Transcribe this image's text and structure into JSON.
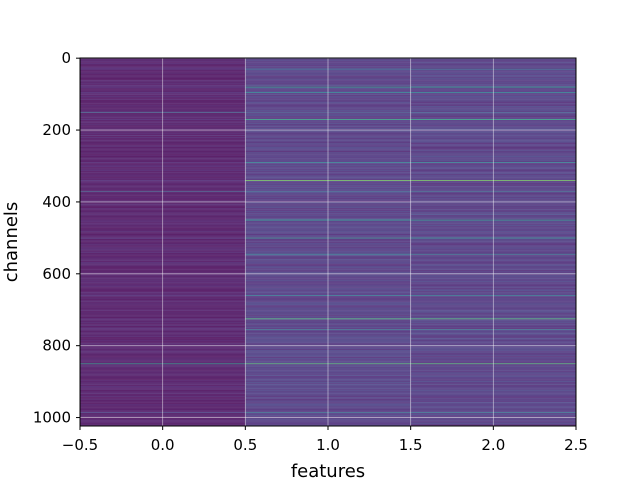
{
  "chart_data": {
    "type": "heatmap",
    "title": "",
    "xlabel": "features",
    "ylabel": "channels",
    "xlim": [
      -0.5,
      2.5
    ],
    "ylim": [
      1023.5,
      -0.5
    ],
    "y_inverted": true,
    "columns": [
      0,
      1,
      2
    ],
    "n_rows": 1024,
    "x_ticks": [
      -0.5,
      0.0,
      0.5,
      1.0,
      1.5,
      2.0,
      2.5
    ],
    "x_tick_labels": [
      "−0.5",
      "0.0",
      "0.5",
      "1.0",
      "1.5",
      "2.0",
      "2.5"
    ],
    "y_ticks": [
      0,
      200,
      400,
      600,
      800,
      1000
    ],
    "y_tick_labels": [
      "0",
      "200",
      "400",
      "600",
      "800",
      "1000"
    ],
    "grid": true,
    "colormap": "viridis",
    "value_range": [
      0,
      1
    ],
    "base_levels": [
      0.02,
      0.13,
      0.13
    ],
    "highlight_rows": [
      {
        "channel": 30,
        "values": [
          0.1,
          0.35,
          0.35
        ]
      },
      {
        "channel": 80,
        "values": [
          0.1,
          0.55,
          0.55
        ]
      },
      {
        "channel": 95,
        "values": [
          0.08,
          0.45,
          0.45
        ]
      },
      {
        "channel": 150,
        "values": [
          0.35,
          0.3,
          0.3
        ]
      },
      {
        "channel": 170,
        "values": [
          0.1,
          0.62,
          0.62
        ]
      },
      {
        "channel": 290,
        "values": [
          0.08,
          0.45,
          0.45
        ]
      },
      {
        "channel": 340,
        "values": [
          0.1,
          0.78,
          0.78
        ]
      },
      {
        "channel": 370,
        "values": [
          0.3,
          0.35,
          0.35
        ]
      },
      {
        "channel": 450,
        "values": [
          0.1,
          0.55,
          0.55
        ]
      },
      {
        "channel": 500,
        "values": [
          0.1,
          0.5,
          0.5
        ]
      },
      {
        "channel": 545,
        "values": [
          0.05,
          0.45,
          0.45
        ]
      },
      {
        "channel": 660,
        "values": [
          0.1,
          0.4,
          0.4
        ]
      },
      {
        "channel": 725,
        "values": [
          0.08,
          0.7,
          0.7
        ]
      },
      {
        "channel": 755,
        "values": [
          0.05,
          0.4,
          0.4
        ]
      },
      {
        "channel": 850,
        "values": [
          0.55,
          0.72,
          0.72
        ]
      },
      {
        "channel": 985,
        "values": [
          0.2,
          0.4,
          0.4
        ]
      }
    ]
  }
}
